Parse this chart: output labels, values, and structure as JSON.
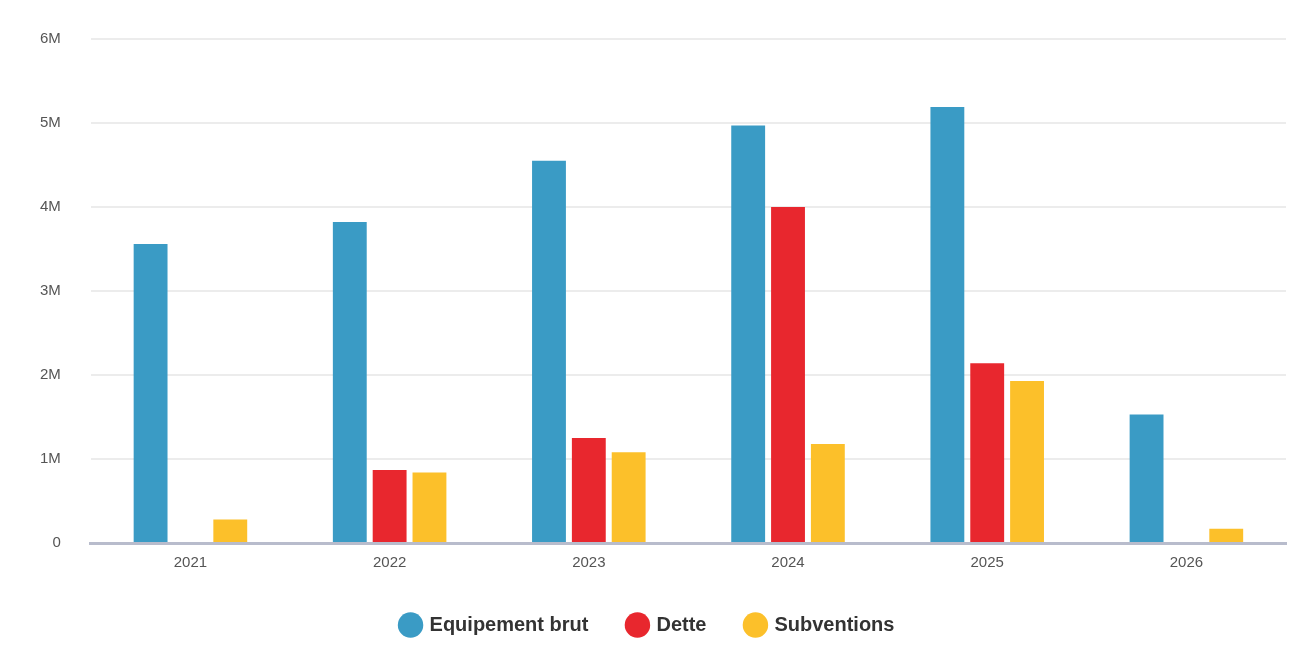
{
  "chart_data": {
    "type": "bar",
    "categories": [
      "2021",
      "2022",
      "2023",
      "2024",
      "2025",
      "2026"
    ],
    "series": [
      {
        "name": "Equipement brut",
        "color": "#3a9bc5",
        "values": [
          3560000,
          3820000,
          4550000,
          4970000,
          5190000,
          1530000
        ]
      },
      {
        "name": "Dette",
        "color": "#e8272e",
        "values": [
          0,
          870000,
          1250000,
          4000000,
          2140000,
          0
        ]
      },
      {
        "name": "Subventions",
        "color": "#fcc02a",
        "values": [
          280000,
          840000,
          1080000,
          1180000,
          1930000,
          170000
        ]
      }
    ],
    "ylim": [
      0,
      6000000
    ],
    "yticks": [
      {
        "value": 0,
        "label": "0"
      },
      {
        "value": 1000000,
        "label": "1M"
      },
      {
        "value": 2000000,
        "label": "2M"
      },
      {
        "value": 3000000,
        "label": "3M"
      },
      {
        "value": 4000000,
        "label": "4M"
      },
      {
        "value": 5000000,
        "label": "5M"
      },
      {
        "value": 6000000,
        "label": "6M"
      }
    ],
    "grid": "y",
    "legend": "bottom"
  }
}
